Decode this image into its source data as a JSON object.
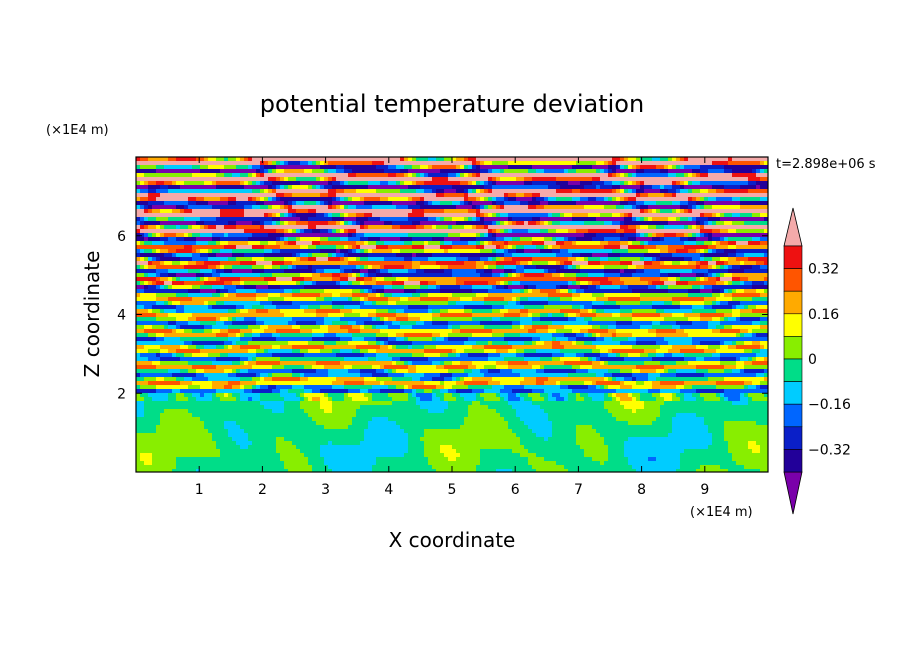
{
  "chart_data": {
    "type": "heatmap",
    "title": "potential temperature deviation",
    "xlabel": "X coordinate",
    "ylabel": "Z coordinate",
    "x_unit": "(×1E4 m)",
    "y_unit": "(×1E4 m)",
    "time_label": "t=2.898e+06 s",
    "xlim": [
      0,
      10
    ],
    "ylim": [
      0,
      8
    ],
    "x_ticks": [
      "1",
      "2",
      "3",
      "4",
      "5",
      "6",
      "7",
      "8",
      "9"
    ],
    "y_ticks": [
      "2",
      "4",
      "6"
    ],
    "colorbar": {
      "levels": [
        -0.4,
        -0.32,
        -0.24,
        -0.16,
        -0.08,
        0,
        0.08,
        0.16,
        0.24,
        0.32,
        0.4
      ],
      "colors": [
        "#7a00aa",
        "#220099",
        "#0a1fc8",
        "#0066ff",
        "#00ccff",
        "#00dd88",
        "#88ee00",
        "#ffff00",
        "#ffaa00",
        "#ff5500",
        "#ee1111",
        "#f4aaaa"
      ],
      "tick_labels": [
        "0.32",
        "0.16",
        "0",
        "−0.16",
        "−0.32"
      ],
      "extend": "both"
    },
    "field_description_levels": {
      "lower_layer": {
        "z_range": [
          0,
          2
        ],
        "dominant_value_range": [
          -0.08,
          0.08
        ]
      },
      "middle_layer": {
        "z_range": [
          2,
          6
        ],
        "dominant_value_range": [
          -0.4,
          0.4
        ]
      },
      "upper_layer": {
        "z_range": [
          6,
          8
        ],
        "dominant_value_range": [
          -0.4,
          0.4
        ]
      }
    }
  }
}
